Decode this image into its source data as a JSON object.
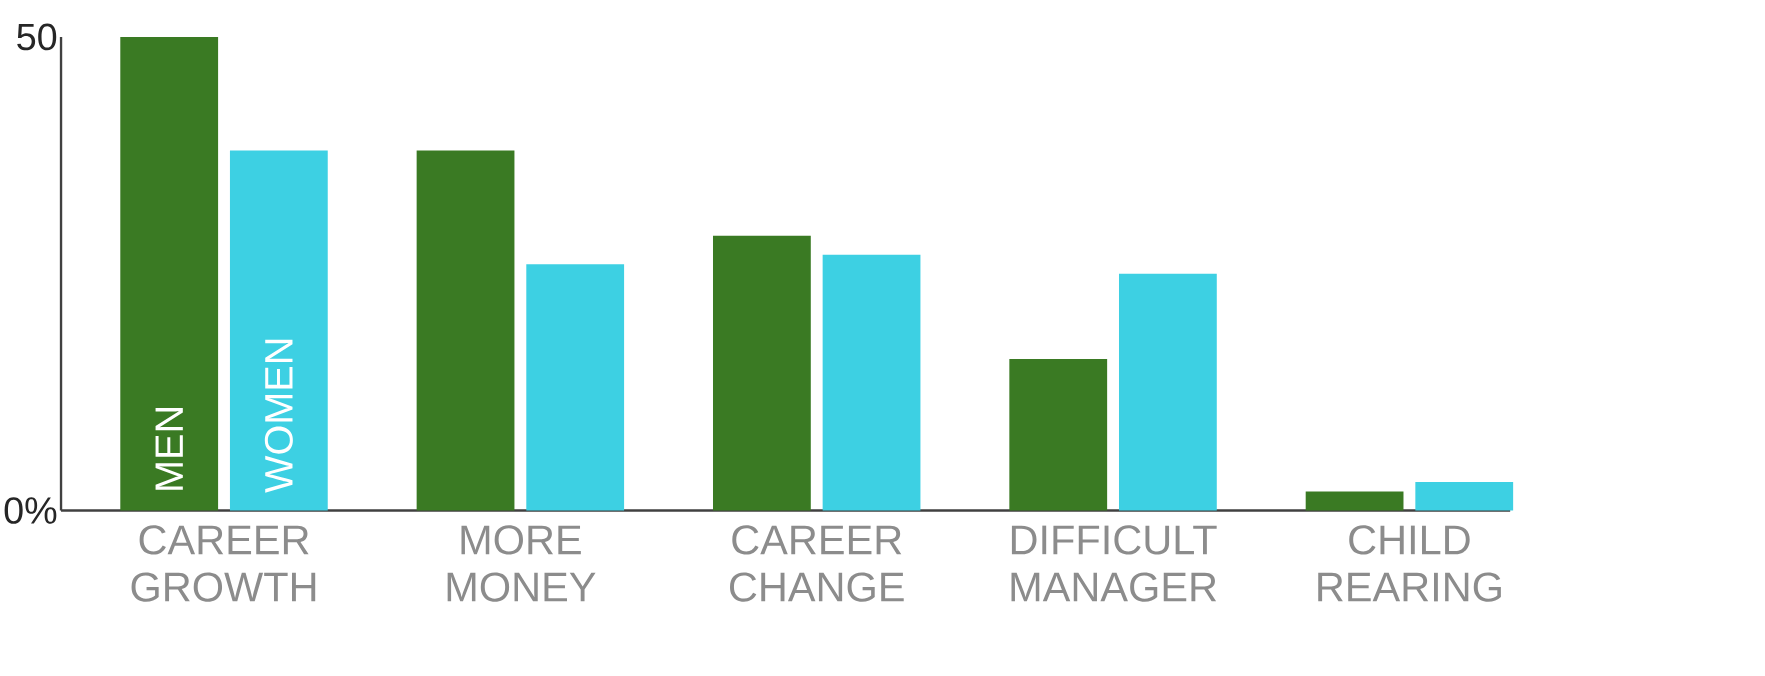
{
  "chart_data": {
    "type": "bar",
    "categories": [
      "CAREER GROWTH",
      "MORE MONEY",
      "CAREER CHANGE",
      "DIFFICULT MANAGER",
      "CHILD REARING"
    ],
    "series": [
      {
        "name": "MEN",
        "color": "#3a7a23",
        "values": [
          50,
          38,
          29,
          16,
          2
        ]
      },
      {
        "name": "WOMEN",
        "color": "#3dd0e3",
        "values": [
          38,
          26,
          27,
          25,
          3
        ]
      }
    ],
    "ylim": [
      0,
      50
    ],
    "yticks": [
      {
        "value": 0,
        "label": "0%"
      },
      50
    ]
  }
}
